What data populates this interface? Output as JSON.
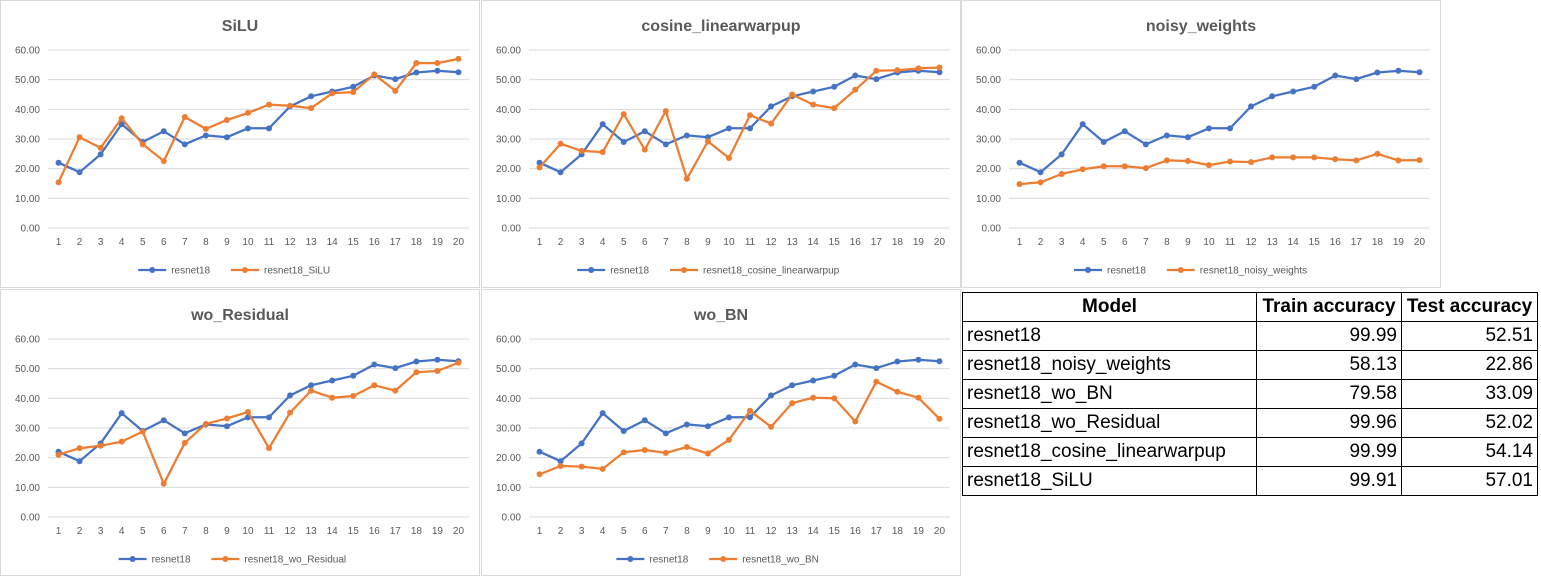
{
  "colors": {
    "baseline": "#4472C4",
    "variant": "#ED7D31",
    "grid": "#D9D9D9",
    "text": "#595959"
  },
  "chart_data": [
    {
      "type": "line",
      "title": "SiLU",
      "x": [
        1,
        2,
        3,
        4,
        5,
        6,
        7,
        8,
        9,
        10,
        11,
        12,
        13,
        14,
        15,
        16,
        17,
        18,
        19,
        20
      ],
      "yticks": [
        "0.00",
        "10.00",
        "20.00",
        "30.00",
        "40.00",
        "50.00",
        "60.00"
      ],
      "ylim": [
        0,
        60
      ],
      "legend_position": "bottom",
      "series": [
        {
          "name": "resnet18",
          "color": "#4472C4",
          "values": [
            22.0,
            18.8,
            24.8,
            35.0,
            29.0,
            32.6,
            28.2,
            31.2,
            30.6,
            33.6,
            33.6,
            41.0,
            44.4,
            46.0,
            47.6,
            51.4,
            50.2,
            52.4,
            53.0,
            52.5
          ]
        },
        {
          "name": "resnet18_SiLU",
          "color": "#ED7D31",
          "values": [
            15.4,
            30.6,
            27.0,
            37.0,
            28.2,
            22.6,
            37.4,
            33.4,
            36.4,
            38.8,
            41.6,
            41.2,
            40.4,
            45.4,
            45.8,
            51.8,
            46.2,
            55.6,
            55.6,
            57.0
          ]
        }
      ]
    },
    {
      "type": "line",
      "title": "cosine_linearwarpup",
      "x": [
        1,
        2,
        3,
        4,
        5,
        6,
        7,
        8,
        9,
        10,
        11,
        12,
        13,
        14,
        15,
        16,
        17,
        18,
        19,
        20
      ],
      "yticks": [
        "0.00",
        "10.00",
        "20.00",
        "30.00",
        "40.00",
        "50.00",
        "60.00"
      ],
      "ylim": [
        0,
        60
      ],
      "legend_position": "bottom",
      "series": [
        {
          "name": "resnet18",
          "color": "#4472C4",
          "values": [
            22.0,
            18.8,
            24.8,
            35.0,
            29.0,
            32.6,
            28.2,
            31.2,
            30.6,
            33.6,
            33.6,
            41.0,
            44.4,
            46.0,
            47.6,
            51.4,
            50.2,
            52.4,
            53.0,
            52.5
          ]
        },
        {
          "name": "resnet18_cosine_linearwarpup",
          "color": "#ED7D31",
          "values": [
            20.4,
            28.4,
            26.0,
            25.6,
            38.4,
            26.4,
            39.4,
            16.6,
            29.2,
            23.6,
            38.0,
            35.2,
            45.0,
            41.6,
            40.4,
            46.6,
            53.0,
            53.2,
            53.8,
            54.1
          ]
        }
      ]
    },
    {
      "type": "line",
      "title": "noisy_weights",
      "x": [
        1,
        2,
        3,
        4,
        5,
        6,
        7,
        8,
        9,
        10,
        11,
        12,
        13,
        14,
        15,
        16,
        17,
        18,
        19,
        20
      ],
      "yticks": [
        "0.00",
        "10.00",
        "20.00",
        "30.00",
        "40.00",
        "50.00",
        "60.00"
      ],
      "ylim": [
        0,
        60
      ],
      "legend_position": "bottom",
      "series": [
        {
          "name": "resnet18",
          "color": "#4472C4",
          "values": [
            22.0,
            18.8,
            24.8,
            35.0,
            29.0,
            32.6,
            28.2,
            31.2,
            30.6,
            33.6,
            33.6,
            41.0,
            44.4,
            46.0,
            47.6,
            51.4,
            50.2,
            52.4,
            53.0,
            52.5
          ]
        },
        {
          "name": "resnet18_noisy_weights",
          "color": "#ED7D31",
          "values": [
            14.8,
            15.4,
            18.2,
            19.8,
            20.8,
            20.8,
            20.2,
            22.8,
            22.6,
            21.2,
            22.4,
            22.2,
            23.8,
            23.8,
            23.8,
            23.2,
            22.8,
            25.0,
            22.8,
            22.9
          ]
        }
      ]
    },
    {
      "type": "line",
      "title": "wo_Residual",
      "x": [
        1,
        2,
        3,
        4,
        5,
        6,
        7,
        8,
        9,
        10,
        11,
        12,
        13,
        14,
        15,
        16,
        17,
        18,
        19,
        20
      ],
      "yticks": [
        "0.00",
        "10.00",
        "20.00",
        "30.00",
        "40.00",
        "50.00",
        "60.00"
      ],
      "ylim": [
        0,
        60
      ],
      "legend_position": "bottom",
      "series": [
        {
          "name": "resnet18",
          "color": "#4472C4",
          "values": [
            22.0,
            18.8,
            24.8,
            35.0,
            29.0,
            32.6,
            28.2,
            31.2,
            30.6,
            33.6,
            33.6,
            41.0,
            44.4,
            46.0,
            47.6,
            51.4,
            50.2,
            52.4,
            53.0,
            52.5
          ]
        },
        {
          "name": "resnet18_wo_Residual",
          "color": "#ED7D31",
          "values": [
            21.0,
            23.2,
            24.0,
            25.4,
            28.8,
            11.2,
            25.0,
            31.4,
            33.2,
            35.4,
            23.2,
            35.2,
            42.6,
            40.2,
            40.8,
            44.4,
            42.6,
            48.8,
            49.2,
            52.0
          ]
        }
      ]
    },
    {
      "type": "line",
      "title": "wo_BN",
      "x": [
        1,
        2,
        3,
        4,
        5,
        6,
        7,
        8,
        9,
        10,
        11,
        12,
        13,
        14,
        15,
        16,
        17,
        18,
        19,
        20
      ],
      "yticks": [
        "0.00",
        "10.00",
        "20.00",
        "30.00",
        "40.00",
        "50.00",
        "60.00"
      ],
      "ylim": [
        0,
        60
      ],
      "legend_position": "bottom",
      "series": [
        {
          "name": "resnet18",
          "color": "#4472C4",
          "values": [
            22.0,
            18.8,
            24.8,
            35.0,
            29.0,
            32.6,
            28.2,
            31.2,
            30.6,
            33.6,
            33.6,
            41.0,
            44.4,
            46.0,
            47.6,
            51.4,
            50.2,
            52.4,
            53.0,
            52.5
          ]
        },
        {
          "name": "resnet18_wo_BN",
          "color": "#ED7D31",
          "values": [
            14.4,
            17.2,
            17.0,
            16.2,
            21.8,
            22.6,
            21.6,
            23.6,
            21.4,
            26.0,
            35.8,
            30.4,
            38.4,
            40.2,
            40.0,
            32.2,
            45.6,
            42.2,
            40.2,
            33.1
          ]
        }
      ]
    }
  ],
  "table": {
    "headers": [
      "Model",
      "Train accuracy",
      "Test accuracy"
    ],
    "rows": [
      [
        "resnet18",
        "99.99",
        "52.51"
      ],
      [
        "resnet18_noisy_weights",
        "58.13",
        "22.86"
      ],
      [
        "resnet18_wo_BN",
        "79.58",
        "33.09"
      ],
      [
        "resnet18_wo_Residual",
        "99.96",
        "52.02"
      ],
      [
        "resnet18_cosine_linearwarpup",
        "99.99",
        "54.14"
      ],
      [
        "resnet18_SiLU",
        "99.91",
        "57.01"
      ]
    ]
  }
}
